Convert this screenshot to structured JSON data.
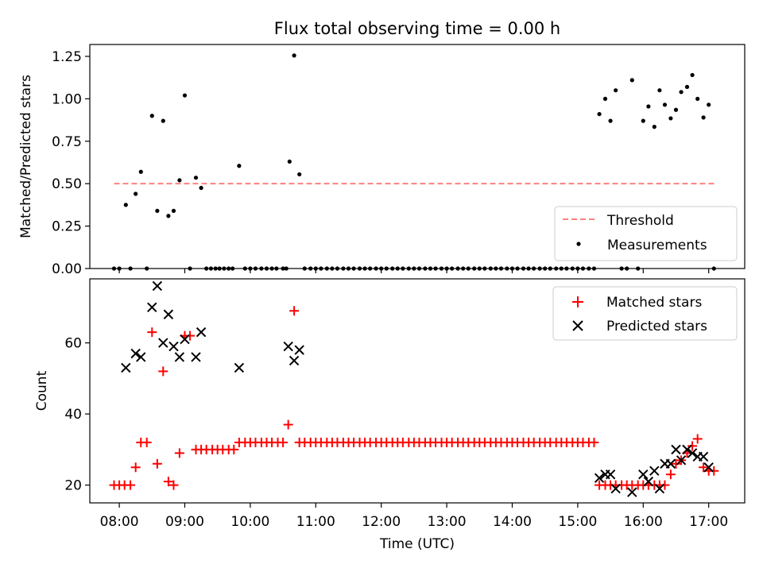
{
  "title": "Flux total observing time = 0.00 h",
  "x_axis": {
    "label": "Time (UTC)",
    "ticks": [
      {
        "label": "08:00",
        "value": 8.0
      },
      {
        "label": "09:00",
        "value": 9.0
      },
      {
        "label": "10:00",
        "value": 10.0
      },
      {
        "label": "11:00",
        "value": 11.0
      },
      {
        "label": "12:00",
        "value": 12.0
      },
      {
        "label": "13:00",
        "value": 13.0
      },
      {
        "label": "14:00",
        "value": 14.0
      },
      {
        "label": "15:00",
        "value": 15.0
      },
      {
        "label": "16:00",
        "value": 16.0
      },
      {
        "label": "17:00",
        "value": 17.0
      }
    ],
    "range": [
      7.55,
      17.55
    ]
  },
  "chart_data": [
    {
      "type": "scatter",
      "panel": "top",
      "title": "Flux total observing time = 0.00 h",
      "ylabel": "Matched/Predicted stars",
      "ylim": [
        0,
        1.32
      ],
      "yticks": [
        {
          "label": "0.00",
          "value": 0.0
        },
        {
          "label": "0.25",
          "value": 0.25
        },
        {
          "label": "0.50",
          "value": 0.5
        },
        {
          "label": "0.75",
          "value": 0.75
        },
        {
          "label": "1.00",
          "value": 1.0
        },
        {
          "label": "1.25",
          "value": 1.25
        }
      ],
      "threshold": {
        "name": "Threshold",
        "value": 0.5,
        "x": [
          7.92,
          17.1
        ],
        "color": "#ff8080"
      },
      "legend": {
        "position": "bottom-right",
        "entries": [
          "Threshold",
          "Measurements"
        ]
      },
      "series": [
        {
          "name": "Measurements",
          "color": "#000000",
          "marker": "dot",
          "x": [
            7.92,
            8.0,
            8.1,
            8.17,
            8.25,
            8.33,
            8.42,
            8.5,
            8.58,
            8.67,
            8.75,
            8.83,
            8.92,
            9.0,
            9.08,
            9.17,
            9.25,
            9.33,
            9.4,
            9.47,
            9.53,
            9.6,
            9.67,
            9.73,
            9.83,
            9.92,
            10.0,
            10.08,
            10.17,
            10.25,
            10.33,
            10.4,
            10.5,
            10.55,
            10.6,
            10.67,
            10.75,
            10.83,
            10.92,
            11.0,
            11.08,
            11.17,
            11.25,
            11.33,
            11.42,
            11.5,
            11.58,
            11.67,
            11.75,
            11.83,
            11.92,
            12.0,
            12.08,
            12.17,
            12.25,
            12.33,
            12.42,
            12.5,
            12.58,
            12.67,
            12.75,
            12.83,
            12.92,
            13.0,
            13.08,
            13.17,
            13.25,
            13.33,
            13.42,
            13.5,
            13.58,
            13.67,
            13.75,
            13.83,
            13.92,
            14.0,
            14.08,
            14.17,
            14.25,
            14.33,
            14.42,
            14.5,
            14.58,
            14.67,
            14.75,
            14.83,
            14.92,
            15.0,
            15.08,
            15.17,
            15.25,
            15.33,
            15.42,
            15.5,
            15.58,
            15.67,
            15.75,
            15.83,
            15.92,
            16.0,
            16.08,
            16.17,
            16.25,
            16.33,
            16.42,
            16.5,
            16.58,
            16.67,
            16.75,
            16.83,
            16.92,
            17.0,
            17.08
          ],
          "y": [
            0.0,
            0.0,
            0.375,
            0.0,
            0.44,
            0.57,
            0.0,
            0.9,
            0.34,
            0.87,
            0.31,
            0.34,
            0.52,
            1.02,
            0.0,
            0.535,
            0.475,
            0.0,
            0.0,
            0.0,
            0.0,
            0.0,
            0.0,
            0.0,
            0.605,
            0.0,
            0.0,
            0.0,
            0.0,
            0.0,
            0.0,
            0.0,
            0.0,
            0.0,
            0.63,
            1.255,
            0.555,
            0.0,
            0.0,
            0.0,
            0.0,
            0.0,
            0.0,
            0.0,
            0.0,
            0.0,
            0.0,
            0.0,
            0.0,
            0.0,
            0.0,
            0.0,
            0.0,
            0.0,
            0.0,
            0.0,
            0.0,
            0.0,
            0.0,
            0.0,
            0.0,
            0.0,
            0.0,
            0.0,
            0.0,
            0.0,
            0.0,
            0.0,
            0.0,
            0.0,
            0.0,
            0.0,
            0.0,
            0.0,
            0.0,
            0.0,
            0.0,
            0.0,
            0.0,
            0.0,
            0.0,
            0.0,
            0.0,
            0.0,
            0.0,
            0.0,
            0.0,
            0.0,
            0.0,
            0.0,
            0.0,
            0.91,
            1.0,
            0.87,
            1.05,
            0.0,
            0.0,
            1.11,
            0.0,
            0.87,
            0.955,
            0.835,
            1.05,
            0.965,
            0.885,
            0.935,
            1.04,
            1.07,
            1.14,
            1.0,
            0.89,
            0.965,
            0.0
          ]
        }
      ]
    },
    {
      "type": "scatter",
      "panel": "bottom",
      "title": "",
      "xlabel": "Time (UTC)",
      "ylabel": "Count",
      "ylim": [
        15,
        78
      ],
      "yticks": [
        {
          "label": "20",
          "value": 20
        },
        {
          "label": "40",
          "value": 40
        },
        {
          "label": "60",
          "value": 60
        }
      ],
      "legend": {
        "position": "top-right",
        "entries": [
          "Matched stars",
          "Predicted stars"
        ]
      },
      "series": [
        {
          "name": "Matched stars",
          "color": "#ff0000",
          "marker": "plus",
          "x": [
            7.92,
            8.0,
            8.08,
            8.17,
            8.25,
            8.33,
            8.42,
            8.5,
            8.58,
            8.67,
            8.75,
            8.83,
            8.92,
            9.0,
            9.08,
            9.17,
            9.25,
            9.33,
            9.42,
            9.5,
            9.58,
            9.67,
            9.75,
            9.83,
            9.92,
            10.0,
            10.08,
            10.17,
            10.25,
            10.33,
            10.42,
            10.5,
            10.58,
            10.67,
            10.75,
            10.83,
            10.92,
            11.0,
            11.08,
            11.17,
            11.25,
            11.33,
            11.42,
            11.5,
            11.58,
            11.67,
            11.75,
            11.83,
            11.92,
            12.0,
            12.08,
            12.17,
            12.25,
            12.33,
            12.42,
            12.5,
            12.58,
            12.67,
            12.75,
            12.83,
            12.92,
            13.0,
            13.08,
            13.17,
            13.25,
            13.33,
            13.42,
            13.5,
            13.58,
            13.67,
            13.75,
            13.83,
            13.92,
            14.0,
            14.08,
            14.17,
            14.25,
            14.33,
            14.42,
            14.5,
            14.58,
            14.67,
            14.75,
            14.83,
            14.92,
            15.0,
            15.08,
            15.17,
            15.25,
            15.33,
            15.42,
            15.5,
            15.58,
            15.67,
            15.75,
            15.83,
            15.92,
            16.0,
            16.08,
            16.17,
            16.25,
            16.33,
            16.42,
            16.5,
            16.58,
            16.67,
            16.75,
            16.83,
            16.92,
            17.0,
            17.08
          ],
          "y": [
            20,
            20,
            20,
            20,
            25,
            32,
            32,
            63,
            26,
            52,
            21,
            20,
            29,
            62,
            62,
            30,
            30,
            30,
            30,
            30,
            30,
            30,
            30,
            32,
            32,
            32,
            32,
            32,
            32,
            32,
            32,
            32,
            37,
            69,
            32,
            32,
            32,
            32,
            32,
            32,
            32,
            32,
            32,
            32,
            32,
            32,
            32,
            32,
            32,
            32,
            32,
            32,
            32,
            32,
            32,
            32,
            32,
            32,
            32,
            32,
            32,
            32,
            32,
            32,
            32,
            32,
            32,
            32,
            32,
            32,
            32,
            32,
            32,
            32,
            32,
            32,
            32,
            32,
            32,
            32,
            32,
            32,
            32,
            32,
            32,
            32,
            32,
            32,
            32,
            20,
            20,
            20,
            20,
            20,
            20,
            20,
            20,
            20,
            20,
            20,
            20,
            20,
            23,
            26,
            27,
            29,
            31,
            33,
            25,
            24,
            24
          ]
        },
        {
          "name": "Predicted stars",
          "color": "#000000",
          "marker": "x",
          "x": [
            8.1,
            8.25,
            8.33,
            8.5,
            8.58,
            8.67,
            8.75,
            8.83,
            8.92,
            9.0,
            9.17,
            9.25,
            9.83,
            10.58,
            10.67,
            10.75,
            15.33,
            15.42,
            15.5,
            15.58,
            15.83,
            16.0,
            16.08,
            16.17,
            16.25,
            16.33,
            16.42,
            16.5,
            16.58,
            16.67,
            16.75,
            16.83,
            16.92,
            17.0
          ],
          "y": [
            53,
            57,
            56,
            70,
            76,
            60,
            68,
            59,
            56,
            61,
            56,
            63,
            53,
            59,
            55,
            58,
            22,
            23,
            23,
            19,
            18,
            23,
            21,
            24,
            19,
            26,
            26,
            30,
            27,
            30,
            29,
            28,
            28,
            25
          ]
        }
      ]
    }
  ]
}
